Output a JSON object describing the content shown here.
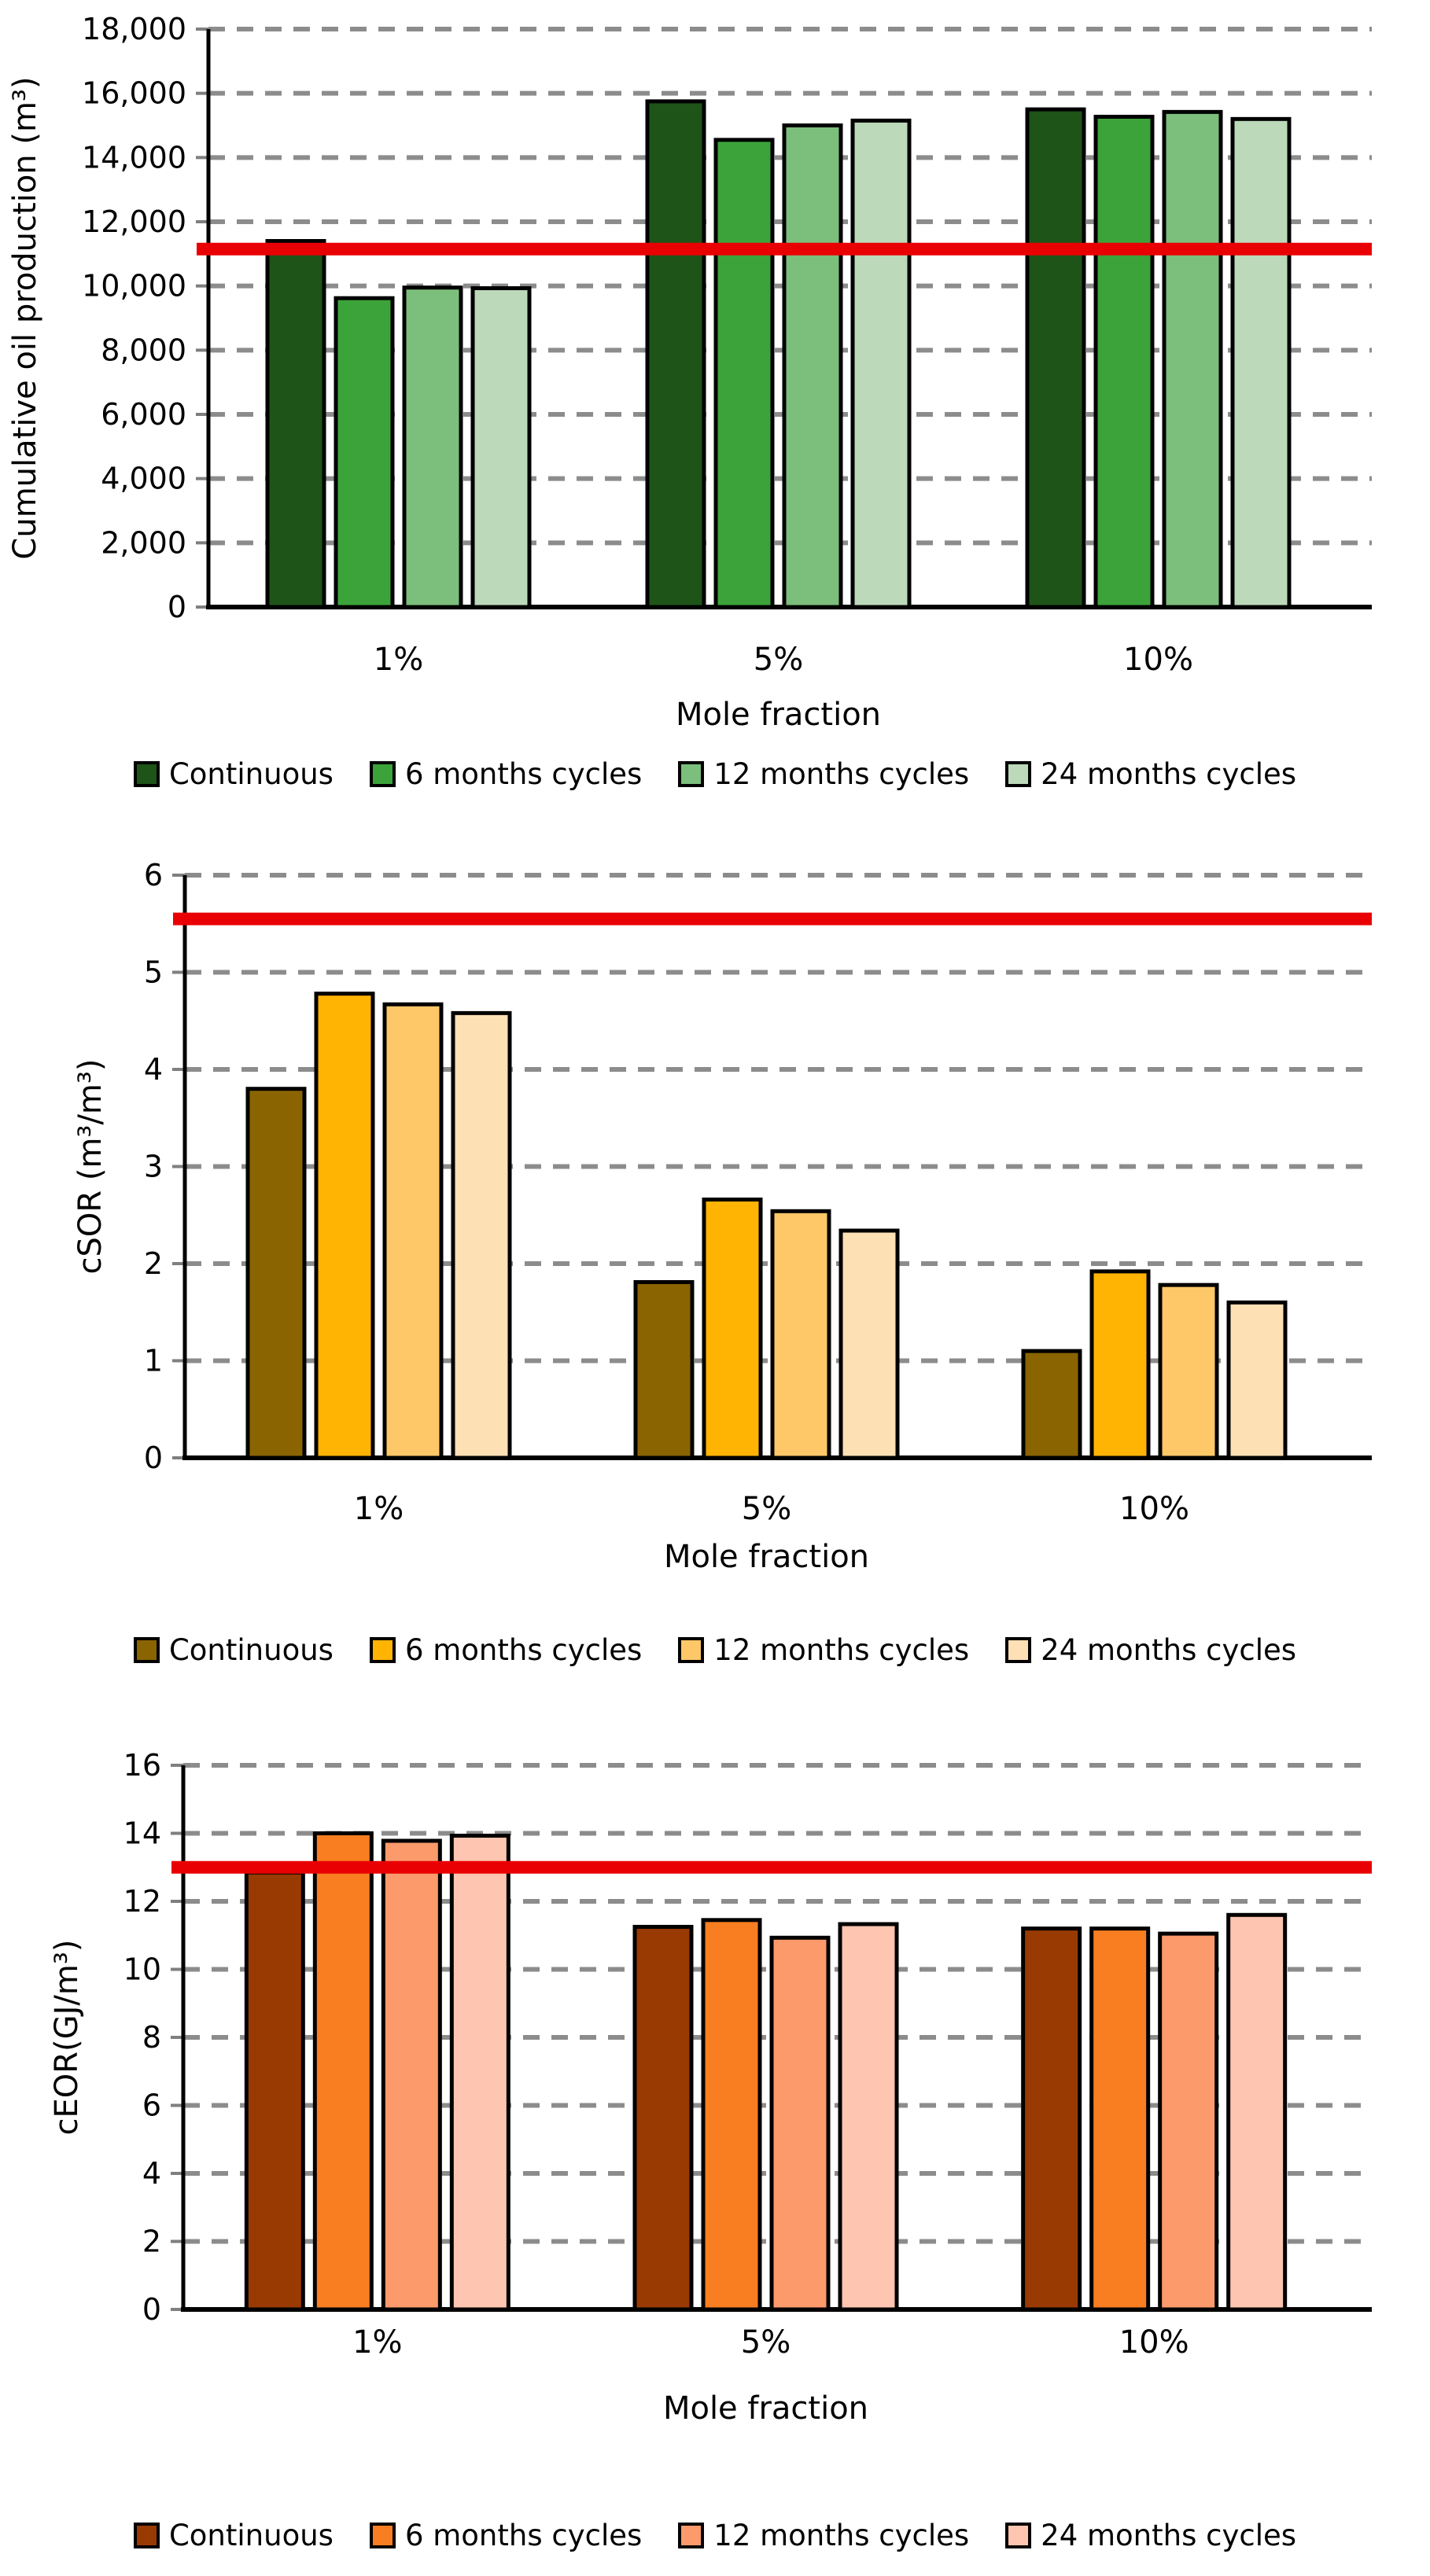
{
  "page": {
    "background": "#FFFFFF"
  },
  "chart_data": [
    {
      "id": "cumulative-oil-production",
      "type": "bar",
      "title": "",
      "xlabel": "Mole fraction",
      "ylabel": "Cumulative oil production (m³)",
      "categories": [
        "1%",
        "5%",
        "10%"
      ],
      "series": [
        {
          "name": "Continuous",
          "color": "#1E5418",
          "values": [
            11400,
            15750,
            15500
          ]
        },
        {
          "name": "6 months cycles",
          "color": "#3CA33A",
          "values": [
            9620,
            14550,
            15270
          ]
        },
        {
          "name": "12 months cycles",
          "color": "#7CBE7B",
          "values": [
            9950,
            15000,
            15420
          ]
        },
        {
          "name": "24 months cycles",
          "color": "#BCD9BA",
          "values": [
            9930,
            15150,
            15200
          ]
        }
      ],
      "ylim": [
        0,
        18000
      ],
      "ytick_step": 2000,
      "ytick_format": "thousands",
      "grid": "horizontal-dashed",
      "gridline_color": "#8C8C8C",
      "ref_line": {
        "value": 11150,
        "color": "#E90002"
      },
      "legend_position": "bottom"
    },
    {
      "id": "csor",
      "type": "bar",
      "title": "",
      "xlabel": "Mole fraction",
      "ylabel": "cSOR (m³/m³)",
      "categories": [
        "1%",
        "5%",
        "10%"
      ],
      "series": [
        {
          "name": "Continuous",
          "color": "#8A6400",
          "values": [
            3.8,
            1.81,
            1.1
          ]
        },
        {
          "name": "6 months cycles",
          "color": "#FFB404",
          "values": [
            4.78,
            2.66,
            1.92
          ]
        },
        {
          "name": "12 months cycles",
          "color": "#FEC868",
          "values": [
            4.67,
            2.54,
            1.78
          ]
        },
        {
          "name": "24 months cycles",
          "color": "#FEE0B5",
          "values": [
            4.58,
            2.34,
            1.6
          ]
        }
      ],
      "ylim": [
        0,
        6
      ],
      "ytick_step": 1,
      "ytick_format": "plain",
      "grid": "horizontal-dashed",
      "gridline_color": "#8C8C8C",
      "ref_line": {
        "value": 5.55,
        "color": "#E90002"
      },
      "legend_position": "bottom"
    },
    {
      "id": "ceor",
      "type": "bar",
      "title": "",
      "xlabel": "Mole fraction",
      "ylabel": "cEOR(GJ/m³)",
      "categories": [
        "1%",
        "5%",
        "10%"
      ],
      "series": [
        {
          "name": "Continuous",
          "color": "#993A02",
          "values": [
            12.85,
            11.25,
            11.2
          ]
        },
        {
          "name": "6 months cycles",
          "color": "#F87E21",
          "values": [
            14.0,
            11.45,
            11.2
          ]
        },
        {
          "name": "12 months cycles",
          "color": "#FC9A6C",
          "values": [
            13.78,
            10.93,
            11.05
          ]
        },
        {
          "name": "24 months cycles",
          "color": "#FEC5B0",
          "values": [
            13.93,
            11.33,
            11.6
          ]
        }
      ],
      "ylim": [
        0,
        16
      ],
      "ytick_step": 2,
      "ytick_format": "plain",
      "grid": "horizontal-dashed",
      "gridline_color": "#8C8C8C",
      "ref_line": {
        "value": 13.0,
        "color": "#E90002"
      },
      "legend_position": "bottom"
    }
  ]
}
